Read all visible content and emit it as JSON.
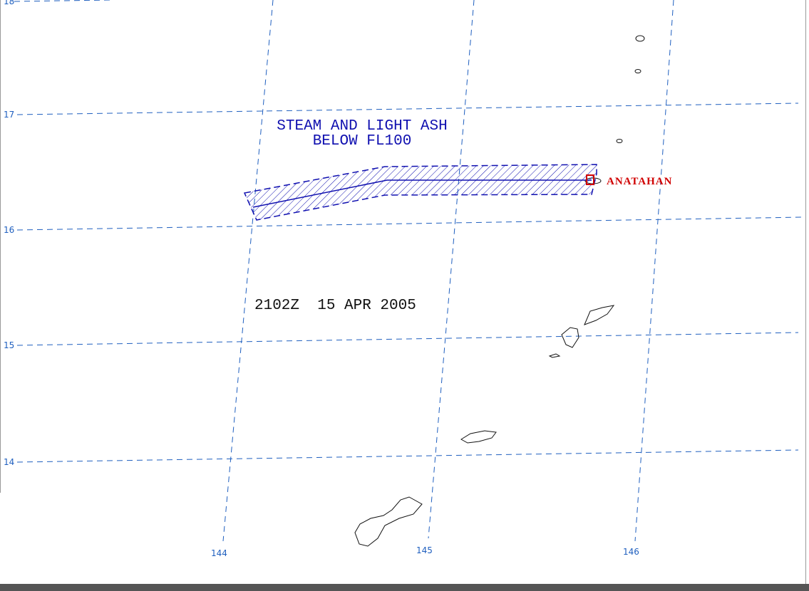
{
  "map": {
    "advisory_text": [
      "STEAM AND LIGHT ASH",
      "BELOW FL100"
    ],
    "timestamp": "2102Z  15 APR 2005",
    "volcano": "ANATAHAN",
    "lat_labels": [
      "18",
      "17",
      "16",
      "15",
      "14"
    ],
    "lon_labels": [
      "144",
      "145",
      "146"
    ]
  }
}
